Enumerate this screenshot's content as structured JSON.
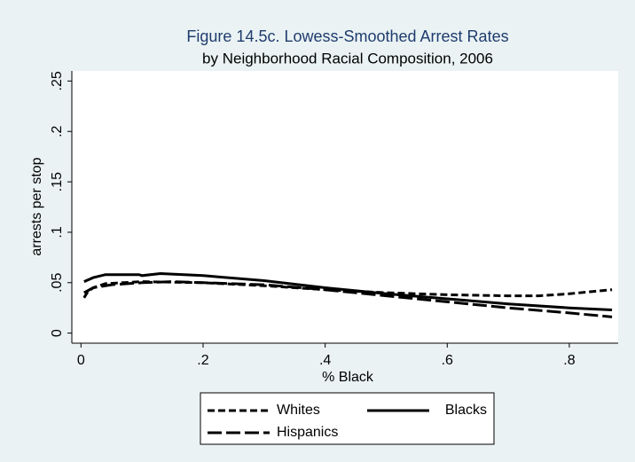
{
  "chart_data": {
    "type": "line",
    "title": "Figure 14.5c.  Lowess-Smoothed Arrest Rates",
    "subtitle": "by Neighborhood Racial Composition, 2006",
    "x_label": "% Black",
    "y_label": "arrests per stop",
    "title_color": "#1f3c6e",
    "xlim": [
      -0.015,
      0.88
    ],
    "ylim": [
      -0.01,
      0.26
    ],
    "xticks": [
      0,
      {
        "value": 0.2,
        "label": ".2"
      },
      {
        "value": 0.4,
        "label": ".4"
      },
      {
        "value": 0.6,
        "label": ".6"
      },
      {
        "value": 0.8,
        "label": ".8"
      }
    ],
    "yticks": [
      0,
      {
        "value": 0.05,
        "label": ".05"
      },
      {
        "value": 0.1,
        "label": ".1"
      },
      {
        "value": 0.15,
        "label": ".15"
      },
      {
        "value": 0.2,
        "label": ".2"
      },
      {
        "value": 0.25,
        "label": ".25"
      }
    ],
    "grid": false,
    "series": [
      {
        "name": "Whites",
        "color": "#000000",
        "dash": "8 4",
        "x": [
          0.005,
          0.01,
          0.02,
          0.04,
          0.1,
          0.2,
          0.3,
          0.4,
          0.5,
          0.6,
          0.7,
          0.75,
          0.8,
          0.87
        ],
        "values": [
          0.035,
          0.04,
          0.045,
          0.049,
          0.051,
          0.05,
          0.047,
          0.043,
          0.04,
          0.038,
          0.037,
          0.037,
          0.039,
          0.043
        ]
      },
      {
        "name": "Blacks",
        "color": "#000000",
        "dash": "none",
        "x": [
          0.005,
          0.02,
          0.04,
          0.095,
          0.1,
          0.13,
          0.2,
          0.3,
          0.4,
          0.5,
          0.6,
          0.7,
          0.8,
          0.87
        ],
        "values": [
          0.051,
          0.055,
          0.058,
          0.058,
          0.057,
          0.059,
          0.057,
          0.052,
          0.045,
          0.039,
          0.034,
          0.029,
          0.025,
          0.023
        ]
      },
      {
        "name": "Hispanics",
        "color": "#000000",
        "dash": "16 5",
        "x": [
          0.005,
          0.02,
          0.05,
          0.1,
          0.15,
          0.2,
          0.3,
          0.4,
          0.5,
          0.6,
          0.7,
          0.8,
          0.87
        ],
        "values": [
          0.04,
          0.045,
          0.048,
          0.05,
          0.051,
          0.05,
          0.048,
          0.043,
          0.037,
          0.031,
          0.025,
          0.02,
          0.016
        ]
      }
    ]
  }
}
